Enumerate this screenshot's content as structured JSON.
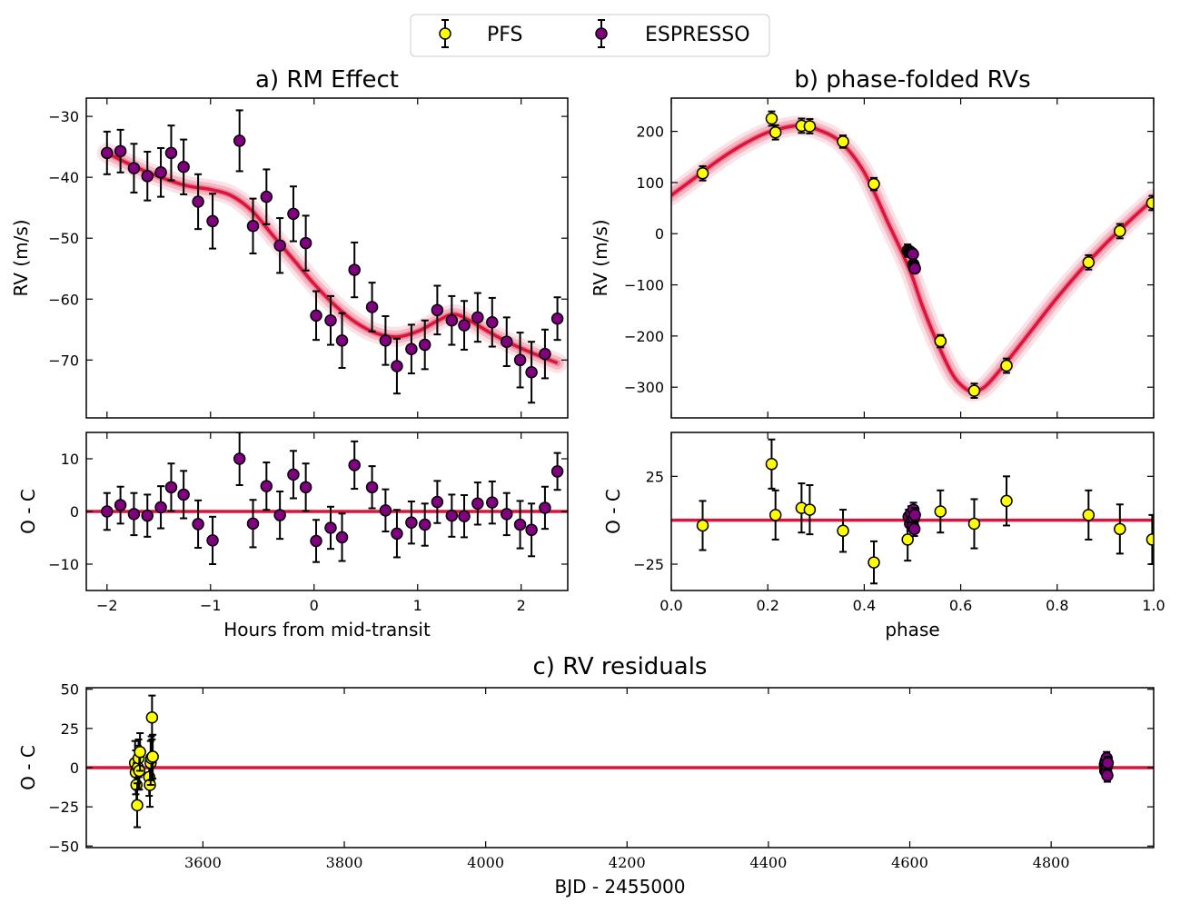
{
  "colors": {
    "model": "#dc143c",
    "pfs": "#ffff00",
    "espresso": "#800080",
    "edge": "#000000"
  },
  "legend": {
    "placement": "top-center",
    "items": [
      {
        "label": "PFS",
        "color": "#ffff00"
      },
      {
        "label": "ESPRESSO",
        "color": "#800080"
      }
    ]
  },
  "chart_data": [
    {
      "id": "a-main",
      "type": "scatter",
      "title": "a) RM Effect",
      "xlabel": "",
      "ylabel": "RV (m/s)",
      "xlim": [
        -2.2,
        2.45
      ],
      "ylim": [
        -79.5,
        -27
      ],
      "xticks": [
        -2,
        -1,
        0,
        1,
        2
      ],
      "xticklabels": [],
      "yticks": [
        -70,
        -60,
        -50,
        -40,
        -30
      ],
      "yticklabels": [
        "−70",
        "−60",
        "−50",
        "−40",
        "−30"
      ],
      "model": {
        "x": [
          -2.0,
          -1.7,
          -1.4,
          -1.2,
          -1.0,
          -0.8,
          -0.6,
          -0.4,
          -0.2,
          0.0,
          0.2,
          0.4,
          0.6,
          0.8,
          1.0,
          1.2,
          1.35,
          1.5,
          1.7,
          1.9,
          2.1,
          2.35
        ],
        "y": [
          -36,
          -38.5,
          -40.5,
          -41.5,
          -42,
          -43,
          -45.5,
          -49.5,
          -53.5,
          -57.5,
          -61,
          -63.8,
          -65.6,
          -66.2,
          -65.3,
          -63.5,
          -62.5,
          -63.5,
          -65.5,
          -67.3,
          -68.8,
          -70.5
        ]
      },
      "series": [
        {
          "marker": "espresso",
          "x": [
            -2.0,
            -1.87,
            -1.74,
            -1.61,
            -1.48,
            -1.38,
            -1.26,
            -1.12,
            -0.98,
            -0.72,
            -0.59,
            -0.46,
            -0.33,
            -0.2,
            -0.08,
            0.02,
            0.16,
            0.27,
            0.39,
            0.56,
            0.69,
            0.8,
            0.94,
            1.07,
            1.19,
            1.33,
            1.45,
            1.58,
            1.72,
            1.86,
            1.99,
            2.1,
            2.23,
            2.35
          ],
          "y": [
            -36,
            -35.7,
            -38.5,
            -39.8,
            -39.2,
            -36,
            -38.3,
            -44,
            -47.2,
            -34,
            -48,
            -43.2,
            -51.2,
            -46,
            -50.8,
            -62.7,
            -63.5,
            -66.8,
            -55.2,
            -61.3,
            -66.8,
            -71,
            -68.2,
            -67.5,
            -61.8,
            -63.5,
            -64.3,
            -63,
            -63.8,
            -67,
            -70,
            -72,
            -69,
            -63.2
          ],
          "err": [
            3.5,
            3.5,
            4.0,
            4.0,
            4.0,
            4.5,
            4.5,
            4.5,
            4.5,
            5.0,
            4.5,
            4.5,
            4.5,
            4.5,
            4.5,
            4.0,
            4.0,
            4.5,
            4.5,
            4.0,
            4.0,
            4.5,
            4.0,
            4.0,
            4.0,
            4.0,
            4.0,
            4.0,
            4.0,
            4.0,
            4.5,
            5.0,
            4.0,
            3.5
          ]
        }
      ]
    },
    {
      "id": "a-resid",
      "type": "scatter",
      "title": "",
      "xlabel": "Hours from mid-transit",
      "ylabel": "O - C",
      "xlim": [
        -2.2,
        2.45
      ],
      "ylim": [
        -15,
        15
      ],
      "xticks": [
        -2,
        -1,
        0,
        1,
        2
      ],
      "xticklabels": [
        "−2",
        "−1",
        "0",
        "1",
        "2"
      ],
      "yticks": [
        -10,
        0,
        10
      ],
      "yticklabels": [
        "−10",
        "0",
        "10"
      ],
      "model": {
        "x": [
          -2.2,
          2.45
        ],
        "y": [
          0,
          0
        ]
      },
      "series": [
        {
          "marker": "espresso",
          "x": [
            -2.0,
            -1.87,
            -1.74,
            -1.61,
            -1.48,
            -1.38,
            -1.26,
            -1.12,
            -0.98,
            -0.72,
            -0.59,
            -0.46,
            -0.33,
            -0.2,
            -0.08,
            0.02,
            0.16,
            0.27,
            0.39,
            0.56,
            0.69,
            0.8,
            0.94,
            1.07,
            1.19,
            1.33,
            1.45,
            1.58,
            1.72,
            1.86,
            1.99,
            2.1,
            2.23,
            2.35
          ],
          "y": [
            0,
            1.2,
            -0.5,
            -0.8,
            0.8,
            4.6,
            3.2,
            -2.4,
            -5.5,
            10,
            -2.3,
            4.8,
            -0.7,
            7,
            4.6,
            -5.6,
            -3.1,
            -4.9,
            8.8,
            4.6,
            0.2,
            -4.2,
            -2.1,
            -2.5,
            1.8,
            -0.8,
            -0.9,
            1.5,
            1.7,
            -0.5,
            -2.5,
            -3.5,
            0.7,
            7.6
          ],
          "err": [
            3.5,
            3.5,
            4.0,
            4.0,
            4.0,
            4.5,
            4.5,
            4.5,
            4.5,
            5.0,
            4.5,
            4.5,
            4.5,
            4.5,
            4.5,
            4.0,
            4.0,
            4.5,
            4.5,
            4.0,
            4.0,
            4.5,
            4.0,
            4.0,
            4.0,
            4.0,
            4.0,
            4.0,
            4.0,
            4.0,
            4.5,
            5.0,
            4.0,
            3.5
          ]
        }
      ]
    },
    {
      "id": "b-main",
      "type": "scatter",
      "title": "b) phase-folded RVs",
      "xlabel": "",
      "ylabel": "RV (m/s)",
      "xlim": [
        0,
        1
      ],
      "ylim": [
        -360,
        265
      ],
      "xticks": [
        0,
        0.2,
        0.4,
        0.6,
        0.8,
        1.0
      ],
      "xticklabels": [],
      "yticks": [
        -300,
        -200,
        -100,
        0,
        100,
        200
      ],
      "yticklabels": [
        "−300",
        "−200",
        "−100",
        "0",
        "100",
        "200"
      ],
      "model": {
        "x": [
          0,
          0.05,
          0.1,
          0.15,
          0.2,
          0.25,
          0.28,
          0.3,
          0.35,
          0.4,
          0.45,
          0.48,
          0.5,
          0.52,
          0.55,
          0.58,
          0.6,
          0.62,
          0.64,
          0.66,
          0.7,
          0.75,
          0.8,
          0.85,
          0.9,
          0.95,
          1.0
        ],
        "y": [
          75,
          110,
          145,
          175,
          198,
          210,
          210,
          205,
          180,
          120,
          20,
          -40,
          -85,
          -140,
          -210,
          -270,
          -295,
          -308,
          -305,
          -290,
          -245,
          -185,
          -125,
          -70,
          -20,
          25,
          68
        ]
      },
      "series": [
        {
          "marker": "pfs",
          "x": [
            0.065,
            0.208,
            0.216,
            0.27,
            0.287,
            0.356,
            0.42,
            0.49,
            0.558,
            0.628,
            0.695,
            0.865,
            0.93,
            0.997
          ],
          "y": [
            118,
            225,
            198,
            211,
            210,
            180,
            97,
            -33,
            -210,
            -307,
            -258,
            -56,
            5,
            60
          ],
          "err": [
            14,
            14,
            14,
            14,
            14,
            12,
            12,
            12,
            12,
            14,
            14,
            14,
            14,
            14
          ]
        },
        {
          "marker": "espresso",
          "x": [
            0.492,
            0.495,
            0.497,
            0.499,
            0.501,
            0.502,
            0.503,
            0.504,
            0.505
          ],
          "y": [
            -33,
            -35,
            -37,
            -38,
            -40,
            -60,
            -63,
            -66,
            -68
          ],
          "err": [
            6,
            6,
            6,
            6,
            6,
            6,
            6,
            6,
            6
          ]
        }
      ]
    },
    {
      "id": "b-resid",
      "type": "scatter",
      "title": "",
      "xlabel": "phase",
      "ylabel": "O - C",
      "xlim": [
        0,
        1
      ],
      "ylim": [
        -40,
        50
      ],
      "xticks": [
        0,
        0.2,
        0.4,
        0.6,
        0.8,
        1.0
      ],
      "xticklabels": [
        "0.0",
        "0.2",
        "0.4",
        "0.6",
        "0.8",
        "1.0"
      ],
      "yticks": [
        -25,
        25
      ],
      "yticklabels": [
        "−25",
        "25"
      ],
      "model": {
        "x": [
          0,
          1
        ],
        "y": [
          0,
          0
        ]
      },
      "series": [
        {
          "marker": "pfs",
          "x": [
            0.065,
            0.208,
            0.216,
            0.27,
            0.287,
            0.356,
            0.42,
            0.49,
            0.558,
            0.628,
            0.695,
            0.865,
            0.93,
            0.997
          ],
          "y": [
            -3,
            32,
            3,
            7,
            6,
            -6,
            -24,
            -11,
            5,
            -2,
            11,
            3,
            -5,
            -11
          ],
          "err": [
            14,
            14,
            14,
            14,
            14,
            12,
            12,
            12,
            12,
            14,
            14,
            14,
            14,
            14
          ]
        },
        {
          "marker": "espresso",
          "x": [
            0.492,
            0.495,
            0.497,
            0.499,
            0.501,
            0.502,
            0.503,
            0.504,
            0.505
          ],
          "y": [
            2,
            -2,
            4,
            0,
            -3,
            6,
            1,
            -5,
            3
          ],
          "err": [
            4,
            4,
            4,
            4,
            4,
            4,
            4,
            4,
            4
          ]
        }
      ]
    },
    {
      "id": "c-resid",
      "type": "scatter",
      "title": "c) RV residuals",
      "xlabel": "BJD - 2455000",
      "ylabel": "O - C",
      "xlim": [
        3435,
        4945
      ],
      "ylim": [
        -51,
        51
      ],
      "xticks": [
        3600,
        3800,
        4000,
        4200,
        4400,
        4600,
        4800
      ],
      "xticklabels": [
        "3600",
        "3800",
        "4000",
        "4200",
        "4400",
        "4600",
        "4800"
      ],
      "yticks": [
        -50,
        -25,
        0,
        25,
        50
      ],
      "yticklabels": [
        "−50",
        "−25",
        "0",
        "25",
        "50"
      ],
      "model": {
        "x": [
          3435,
          4945
        ],
        "y": [
          0,
          0
        ]
      },
      "series": [
        {
          "marker": "pfs",
          "x": [
            3504,
            3505,
            3506,
            3507,
            3508,
            3509,
            3510,
            3511,
            3524,
            3525,
            3526,
            3527,
            3528,
            3529
          ],
          "y": [
            3,
            -3,
            -11,
            -24,
            0,
            6,
            -2,
            10,
            -6,
            -11,
            3,
            6,
            32,
            7
          ],
          "err": [
            14,
            14,
            14,
            14,
            14,
            12,
            12,
            12,
            12,
            14,
            14,
            14,
            14,
            14
          ]
        },
        {
          "marker": "espresso",
          "x": [
            4876,
            4876.5,
            4877,
            4877.5,
            4878,
            4878.5,
            4879,
            4879.5,
            4880
          ],
          "y": [
            2,
            -2,
            4,
            0,
            -3,
            6,
            1,
            -5,
            3
          ],
          "err": [
            4,
            4,
            4,
            4,
            4,
            4,
            4,
            4,
            4
          ]
        }
      ]
    }
  ]
}
